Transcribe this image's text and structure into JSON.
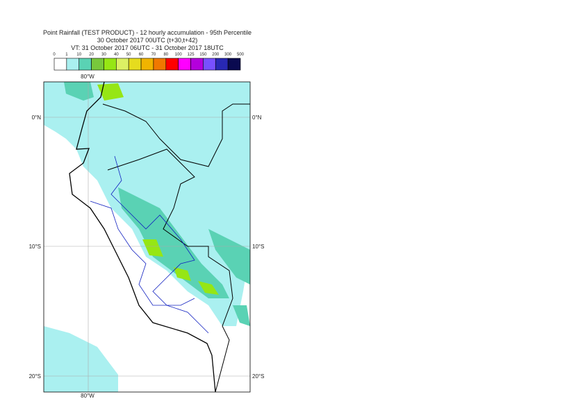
{
  "header": {
    "title": "Point Rainfall (TEST PRODUCT) - 12 hourly accumulation - 95th Percentile",
    "base_time": "30 October 2017 00UTC (t+30,t+42)",
    "valid_time": "VT: 31 October 2017 06UTC - 31 October 2017 18UTC"
  },
  "legend": {
    "levels": [
      "0",
      "1",
      "10",
      "20",
      "30",
      "40",
      "50",
      "60",
      "70",
      "80",
      "100",
      "125",
      "150",
      "200",
      "300",
      "500"
    ],
    "colors": [
      "#ffffff",
      "#aaf0f0",
      "#5ad2b4",
      "#78c83c",
      "#96e614",
      "#dcf064",
      "#e6dc1e",
      "#f0b400",
      "#f07800",
      "#ff0000",
      "#ff00ff",
      "#b400dc",
      "#7850ff",
      "#2828b4",
      "#0a0a50"
    ]
  },
  "map": {
    "lon_labels": [
      "80°W"
    ],
    "lat_labels": [
      "0°N",
      "10°S",
      "20°S"
    ]
  }
}
